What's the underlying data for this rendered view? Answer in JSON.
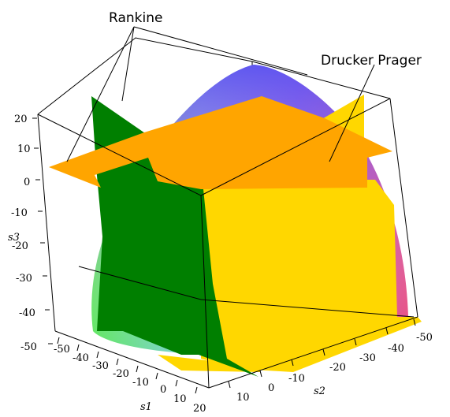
{
  "annotations": {
    "rankine": "Rankine",
    "drucker_prager": "Drucker Prager"
  },
  "axes": {
    "s3": {
      "label": "s3",
      "ticks": [
        "20",
        "10",
        "0",
        "-10",
        "-20",
        "-30",
        "-40",
        "-50"
      ]
    },
    "s1": {
      "label": "s1",
      "ticks": [
        "-50",
        "-40",
        "-30",
        "-20",
        "-10",
        "0",
        "10",
        "20"
      ]
    },
    "s2": {
      "label": "s2",
      "ticks": [
        "10",
        "0",
        "-10",
        "-20",
        "-30",
        "-40",
        "-50"
      ]
    }
  },
  "colors": {
    "rankine_s3_plane": "#ffa500",
    "rankine_s1_plane": "#007f00",
    "rankine_s2_plane": "#ffd700",
    "drucker_prager_gradient": [
      "#5ce65c",
      "#87ceeb",
      "#6f5cf2",
      "#e8457a"
    ]
  }
}
